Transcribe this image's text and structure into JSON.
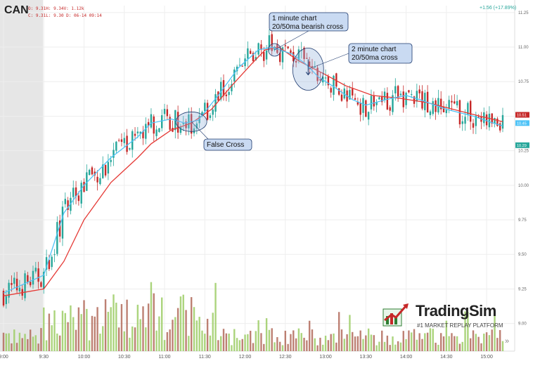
{
  "header": {
    "ticker": "CAN",
    "ohlc_line1": "O: 9.31H: 9.34V: 1.12k",
    "ohlc_line2": "C: 9.31L: 9.30 D: 06-14 09:14",
    "change": "+1.56 (+17.89%)"
  },
  "logo": {
    "brand": "TradingSim",
    "tagline": "#1 MARKET REPLAY PLATFORM"
  },
  "scroll_icon": "»",
  "colors": {
    "up": "#26a69a",
    "down": "#c62828",
    "ma20": "#4fc3f7",
    "ma50": "#e53935",
    "volume_up": "#9ccc65",
    "volume_down": "#b26a5a"
  },
  "chart_data": {
    "type": "candlestick",
    "x_ticks": [
      "9:00",
      "9:30",
      "10:00",
      "10:30",
      "11:00",
      "11:30",
      "12:00",
      "12:30",
      "13:00",
      "13:30",
      "14:00",
      "14:30",
      "15:00"
    ],
    "y_ticks": [
      "11.25",
      "11.00",
      "10.75",
      "10.50",
      "10.25",
      "10.00",
      "9.75",
      "9.50",
      "9.25",
      "9.00"
    ],
    "ylim": [
      8.8,
      11.3
    ],
    "premarket_shaded_until": "9:30",
    "last_price_labels": [
      "10.51",
      "10.45",
      "10.29"
    ],
    "ma20": [
      [
        0,
        9.22
      ],
      [
        30,
        9.35
      ],
      [
        35,
        9.5
      ],
      [
        45,
        9.8
      ],
      [
        60,
        10.0
      ],
      [
        80,
        10.2
      ],
      [
        100,
        10.35
      ],
      [
        110,
        10.45
      ],
      [
        125,
        10.48
      ],
      [
        135,
        10.45
      ],
      [
        145,
        10.47
      ],
      [
        160,
        10.65
      ],
      [
        175,
        10.85
      ],
      [
        190,
        10.98
      ],
      [
        200,
        11.0
      ],
      [
        215,
        10.95
      ],
      [
        225,
        10.88
      ],
      [
        235,
        10.78
      ],
      [
        245,
        10.72
      ],
      [
        260,
        10.62
      ],
      [
        270,
        10.58
      ],
      [
        285,
        10.62
      ],
      [
        300,
        10.65
      ],
      [
        310,
        10.62
      ],
      [
        330,
        10.55
      ],
      [
        350,
        10.5
      ],
      [
        365,
        10.45
      ],
      [
        372,
        10.43
      ]
    ],
    "ma50": [
      [
        0,
        9.2
      ],
      [
        30,
        9.25
      ],
      [
        45,
        9.45
      ],
      [
        60,
        9.75
      ],
      [
        80,
        10.02
      ],
      [
        100,
        10.2
      ],
      [
        110,
        10.3
      ],
      [
        125,
        10.4
      ],
      [
        140,
        10.45
      ],
      [
        155,
        10.55
      ],
      [
        170,
        10.72
      ],
      [
        185,
        10.88
      ],
      [
        195,
        10.98
      ],
      [
        205,
        11.0
      ],
      [
        220,
        10.9
      ],
      [
        240,
        10.8
      ],
      [
        255,
        10.72
      ],
      [
        275,
        10.65
      ],
      [
        295,
        10.63
      ],
      [
        315,
        10.6
      ],
      [
        335,
        10.55
      ],
      [
        355,
        10.5
      ],
      [
        372,
        10.46
      ]
    ],
    "annotations": [
      {
        "text": "False Cross",
        "target_minute": 140,
        "target_price": 10.46
      },
      {
        "text": "1 minute chart\n20/50ma bearish cross",
        "target_minute": 202,
        "target_price": 10.98
      },
      {
        "text": "2 minute chart\n20/50ma cross",
        "target_minute": 227,
        "target_price": 10.84
      }
    ]
  }
}
